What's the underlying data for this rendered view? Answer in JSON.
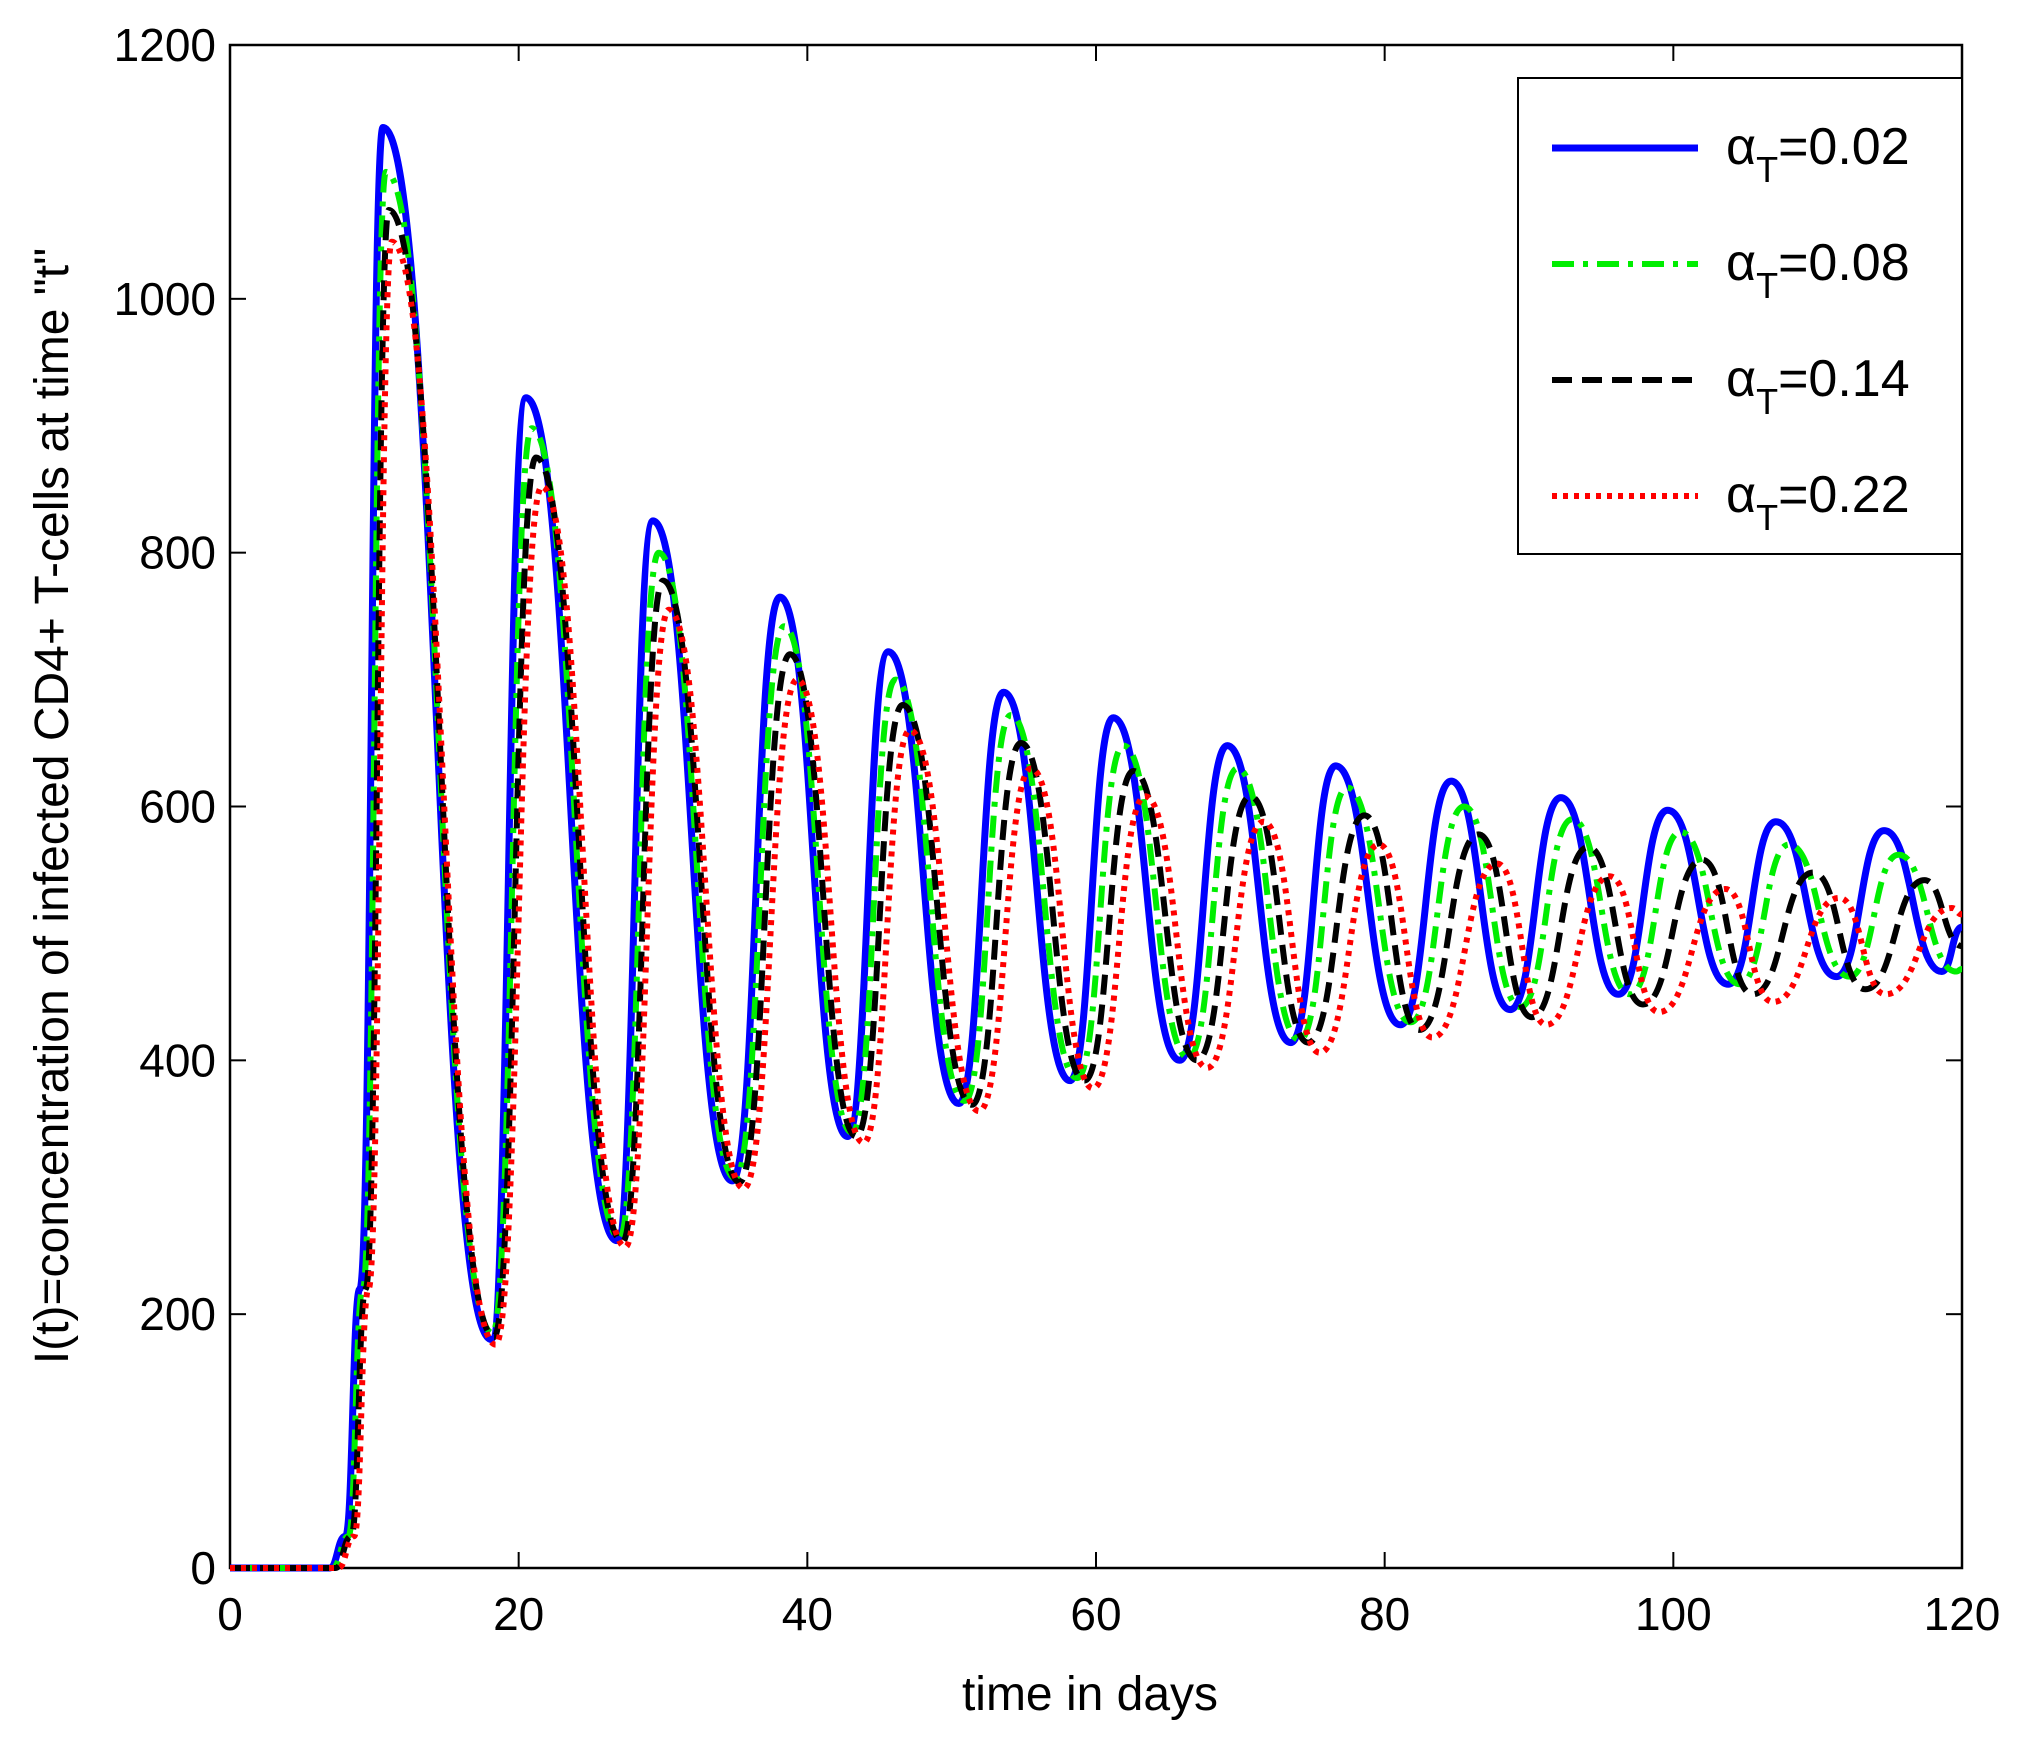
{
  "chart_data": {
    "type": "line",
    "title": "",
    "xlabel": "time in days",
    "ylabel": "I(t)=concentration of infected CD4+  T-cells at time \"t\"",
    "xlim": [
      0,
      120
    ],
    "ylim": [
      0,
      1200
    ],
    "xticks": [
      "0",
      "20",
      "40",
      "60",
      "80",
      "100",
      "120"
    ],
    "yticks": [
      "0",
      "200",
      "400",
      "600",
      "800",
      "1000",
      "1200"
    ],
    "grid": false,
    "legend_position": "top-right",
    "series": [
      {
        "name": "α_T=0.02",
        "legend_symbol": "α",
        "legend_sub": "T",
        "legend_value": "=0.02",
        "color": "#0000ff",
        "style": "solid",
        "peaks": [
          [
            10.6,
            1135
          ],
          [
            20.5,
            922
          ],
          [
            29.3,
            825
          ],
          [
            38.1,
            765
          ],
          [
            45.6,
            722
          ],
          [
            53.6,
            690
          ],
          [
            61.2,
            670
          ],
          [
            69.1,
            648
          ],
          [
            76.6,
            632
          ],
          [
            84.6,
            620
          ],
          [
            92.2,
            607
          ],
          [
            99.6,
            597
          ],
          [
            107.1,
            588
          ],
          [
            114.6,
            581
          ]
        ],
        "troughs": [
          [
            18.1,
            180
          ],
          [
            26.8,
            258
          ],
          [
            34.8,
            305
          ],
          [
            42.8,
            340
          ],
          [
            50.5,
            366
          ],
          [
            58.2,
            384
          ],
          [
            65.8,
            400
          ],
          [
            73.5,
            414
          ],
          [
            81.1,
            428
          ],
          [
            88.7,
            440
          ],
          [
            96.2,
            452
          ],
          [
            103.8,
            460
          ],
          [
            111.3,
            466
          ],
          [
            118.6,
            470
          ]
        ],
        "end": [
          120,
          505
        ]
      },
      {
        "name": "α_T=0.08",
        "legend_symbol": "α",
        "legend_sub": "T",
        "legend_value": "=0.08",
        "color": "#00ee00",
        "style": "dashdot",
        "peaks": [
          [
            10.8,
            1100
          ],
          [
            20.9,
            898
          ],
          [
            29.7,
            800
          ],
          [
            38.4,
            742
          ],
          [
            46.1,
            700
          ],
          [
            54.1,
            672
          ],
          [
            61.9,
            648
          ],
          [
            69.8,
            630
          ],
          [
            77.4,
            615
          ],
          [
            85.5,
            600
          ],
          [
            93.0,
            590
          ],
          [
            100.5,
            580
          ],
          [
            108.0,
            570
          ],
          [
            115.6,
            562
          ]
        ],
        "troughs": [
          [
            18.2,
            185
          ],
          [
            27.0,
            260
          ],
          [
            35.0,
            307
          ],
          [
            43.1,
            343
          ],
          [
            50.9,
            368
          ],
          [
            58.7,
            386
          ],
          [
            66.4,
            402
          ],
          [
            74.1,
            416
          ],
          [
            81.8,
            430
          ],
          [
            89.4,
            442
          ],
          [
            97.0,
            452
          ],
          [
            104.6,
            460
          ],
          [
            112.2,
            466
          ],
          [
            119.6,
            470
          ]
        ],
        "end": [
          120,
          472
        ]
      },
      {
        "name": "α_T=0.14",
        "legend_symbol": "α",
        "legend_sub": "T",
        "legend_value": "=0.14",
        "color": "#000000",
        "style": "dashed",
        "peaks": [
          [
            11.0,
            1070
          ],
          [
            21.2,
            875
          ],
          [
            30.0,
            778
          ],
          [
            38.8,
            720
          ],
          [
            46.6,
            680
          ],
          [
            54.8,
            650
          ],
          [
            62.6,
            628
          ],
          [
            70.7,
            608
          ],
          [
            78.6,
            593
          ],
          [
            86.5,
            578
          ],
          [
            94.1,
            568
          ],
          [
            102.0,
            558
          ],
          [
            109.7,
            548
          ],
          [
            117.4,
            542
          ]
        ],
        "troughs": [
          [
            18.3,
            182
          ],
          [
            27.2,
            257
          ],
          [
            35.3,
            304
          ],
          [
            43.4,
            340
          ],
          [
            51.4,
            365
          ],
          [
            59.2,
            384
          ],
          [
            67.0,
            400
          ],
          [
            74.7,
            414
          ],
          [
            82.4,
            424
          ],
          [
            90.2,
            434
          ],
          [
            97.9,
            444
          ],
          [
            105.5,
            452
          ],
          [
            113.3,
            456
          ]
        ],
        "end": [
          120,
          490
        ]
      },
      {
        "name": "α_T=0.22",
        "legend_symbol": "α",
        "legend_sub": "T",
        "legend_value": "=0.22",
        "color": "#ff0000",
        "style": "dotted",
        "peaks": [
          [
            11.2,
            1045
          ],
          [
            21.6,
            852
          ],
          [
            30.4,
            755
          ],
          [
            39.3,
            700
          ],
          [
            47.1,
            660
          ],
          [
            55.5,
            630
          ],
          [
            63.4,
            608
          ],
          [
            71.6,
            588
          ],
          [
            79.6,
            570
          ],
          [
            87.8,
            555
          ],
          [
            95.6,
            545
          ],
          [
            103.6,
            535
          ],
          [
            111.5,
            528
          ],
          [
            119.3,
            520
          ]
        ],
        "troughs": [
          [
            18.4,
            176
          ],
          [
            27.4,
            253
          ],
          [
            35.6,
            299
          ],
          [
            43.9,
            335
          ],
          [
            51.9,
            360
          ],
          [
            59.8,
            378
          ],
          [
            67.7,
            394
          ],
          [
            75.5,
            406
          ],
          [
            83.3,
            418
          ],
          [
            91.2,
            428
          ],
          [
            99.0,
            438
          ],
          [
            106.9,
            446
          ],
          [
            114.7,
            452
          ]
        ],
        "end": [
          120,
          515
        ]
      }
    ]
  }
}
